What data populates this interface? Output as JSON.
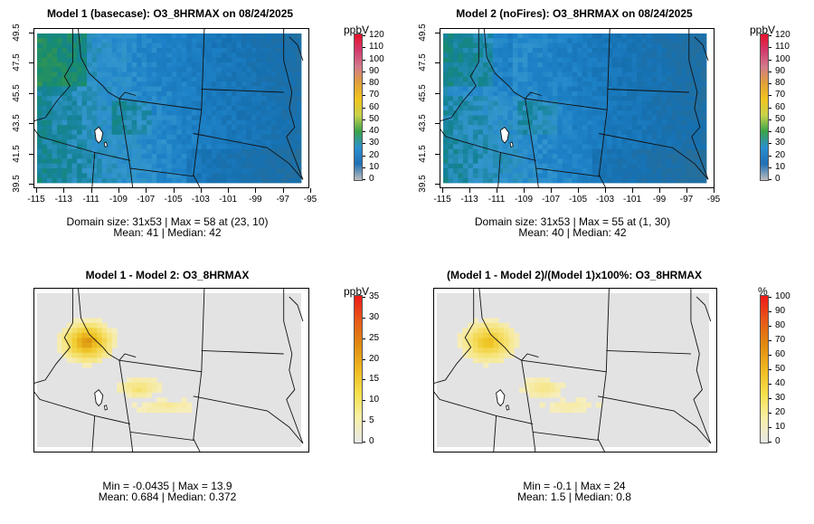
{
  "panels": [
    {
      "title": "Model 1 (basecase): O3_8HRMAX on 08/24/2025",
      "unit": "ppbV",
      "stat_line1": "Domain size: 31x53 | Max = 58 at (23, 10)",
      "stat_line2": "Mean: 41 |  Median: 42",
      "show_axes": true,
      "colorbar_ticks": [
        "120",
        "110",
        "100",
        "90",
        "80",
        "70",
        "60",
        "50",
        "40",
        "30",
        "20",
        "10",
        "0"
      ]
    },
    {
      "title": "Model 2 (noFires): O3_8HRMAX on 08/24/2025",
      "unit": "ppbV",
      "stat_line1": "Domain size: 31x53 | Max = 55 at (1, 30)",
      "stat_line2": "Mean: 40 |  Median: 42",
      "show_axes": true,
      "colorbar_ticks": [
        "120",
        "110",
        "100",
        "90",
        "80",
        "70",
        "60",
        "50",
        "40",
        "30",
        "20",
        "10",
        "0"
      ]
    },
    {
      "title": "Model 1 - Model 2: O3_8HRMAX",
      "unit": "ppbV",
      "stat_line1": "Min = -0.0435 | Max = 13.9",
      "stat_line2": "Mean: 0.684 |  Median: 0.372",
      "show_axes": false,
      "colorbar_ticks": [
        "35",
        "30",
        "25",
        "20",
        "15",
        "10",
        "5",
        "0"
      ]
    },
    {
      "title": "(Model 1 - Model 2)/(Model 1)x100%: O3_8HRMAX",
      "unit": "%",
      "stat_line1": "Min = -0.1 | Max = 24",
      "stat_line2": "Mean: 1.5 |  Median: 0.8",
      "show_axes": false,
      "colorbar_ticks": [
        "100",
        "90",
        "80",
        "70",
        "60",
        "50",
        "40",
        "30",
        "20",
        "10",
        "0"
      ]
    }
  ],
  "axes": {
    "x_ticks": [
      "-115",
      "-113",
      "-111",
      "-109",
      "-107",
      "-105",
      "-103",
      "-101",
      "-99",
      "-97",
      "-95"
    ],
    "y_ticks": [
      "39.5",
      "41.5",
      "43.5",
      "45.5",
      "47.5",
      "49.5"
    ]
  },
  "chart_data": [
    {
      "type": "heatmap",
      "title": "Model 1 (basecase): O3_8HRMAX on 08/24/2025",
      "variable": "O3_8HRMAX",
      "date": "08/24/2025",
      "unit": "ppbV",
      "colorbar_range": [
        0,
        120
      ],
      "xlim": [
        -115,
        -95
      ],
      "ylim": [
        39.5,
        49.5
      ],
      "grid_size": [
        31,
        53
      ],
      "max": 58,
      "max_location": [
        23,
        10
      ],
      "mean": 41,
      "median": 42
    },
    {
      "type": "heatmap",
      "title": "Model 2 (noFires): O3_8HRMAX on 08/24/2025",
      "variable": "O3_8HRMAX",
      "date": "08/24/2025",
      "unit": "ppbV",
      "colorbar_range": [
        0,
        120
      ],
      "xlim": [
        -115,
        -95
      ],
      "ylim": [
        39.5,
        49.5
      ],
      "grid_size": [
        31,
        53
      ],
      "max": 55,
      "max_location": [
        1,
        30
      ],
      "mean": 40,
      "median": 42
    },
    {
      "type": "heatmap",
      "title": "Model 1 - Model 2: O3_8HRMAX",
      "unit": "ppbV",
      "colorbar_range": [
        0,
        35
      ],
      "min": -0.0435,
      "max": 13.9,
      "mean": 0.684,
      "median": 0.372
    },
    {
      "type": "heatmap",
      "title": "(Model 1 - Model 2)/(Model 1)x100%: O3_8HRMAX",
      "unit": "%",
      "colorbar_range": [
        0,
        100
      ],
      "min": -0.1,
      "max": 24,
      "mean": 1.5,
      "median": 0.8
    }
  ],
  "colors": {
    "concentration_ramp": [
      "#bdbdbd",
      "#1f6fb4",
      "#2a8fd0",
      "#3aa34a",
      "#c8d24a",
      "#f0c41e",
      "#e0a13a",
      "#d27a8c",
      "#d23a6e",
      "#e8102a"
    ],
    "difference_ramp": [
      "#e6e6e6",
      "#f8f0a8",
      "#f6e04a",
      "#f0b820",
      "#e08a10",
      "#e85818",
      "#ee1a1a"
    ],
    "background_field": "#e3e3e3"
  }
}
